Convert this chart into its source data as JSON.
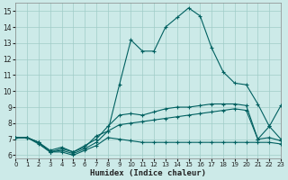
{
  "xlabel": "Humidex (Indice chaleur)",
  "xlim": [
    0,
    23
  ],
  "ylim": [
    5.8,
    15.5
  ],
  "yticks": [
    6,
    7,
    8,
    9,
    10,
    11,
    12,
    13,
    14,
    15
  ],
  "xticks": [
    0,
    1,
    2,
    3,
    4,
    5,
    6,
    7,
    8,
    9,
    10,
    11,
    12,
    13,
    14,
    15,
    16,
    17,
    18,
    19,
    20,
    21,
    22,
    23
  ],
  "bg_color": "#cceae8",
  "grid_color": "#a0ccc8",
  "line_color": "#006060",
  "series": [
    {
      "x": [
        0,
        1,
        2,
        3,
        4,
        5,
        6,
        7,
        8,
        9,
        10,
        11,
        12,
        13,
        14,
        15,
        16,
        17,
        18,
        19,
        20,
        21,
        22,
        23
      ],
      "y": [
        7.1,
        7.1,
        6.8,
        6.3,
        6.5,
        6.2,
        6.5,
        7.2,
        7.5,
        10.4,
        13.2,
        12.5,
        12.5,
        14.0,
        14.6,
        15.2,
        14.7,
        12.7,
        11.2,
        10.5,
        10.4,
        9.2,
        7.8,
        9.1
      ]
    },
    {
      "x": [
        0,
        1,
        2,
        3,
        4,
        5,
        6,
        7,
        8,
        9,
        10,
        11,
        12,
        13,
        14,
        15,
        16,
        17,
        18,
        19,
        20,
        21,
        22,
        23
      ],
      "y": [
        7.1,
        7.1,
        6.8,
        6.2,
        6.4,
        6.2,
        6.6,
        7.0,
        7.8,
        8.5,
        8.6,
        8.5,
        8.7,
        8.9,
        9.0,
        9.0,
        9.1,
        9.2,
        9.2,
        9.2,
        9.1,
        7.0,
        7.8,
        7.0
      ]
    },
    {
      "x": [
        0,
        1,
        2,
        3,
        4,
        5,
        6,
        7,
        8,
        9,
        10,
        11,
        12,
        13,
        14,
        15,
        16,
        17,
        18,
        19,
        20,
        21,
        22,
        23
      ],
      "y": [
        7.1,
        7.1,
        6.8,
        6.2,
        6.3,
        6.1,
        6.4,
        6.8,
        7.5,
        7.9,
        8.0,
        8.1,
        8.2,
        8.3,
        8.4,
        8.5,
        8.6,
        8.7,
        8.8,
        8.9,
        8.8,
        7.0,
        7.1,
        6.9
      ]
    },
    {
      "x": [
        0,
        1,
        2,
        3,
        4,
        5,
        6,
        7,
        8,
        9,
        10,
        11,
        12,
        13,
        14,
        15,
        16,
        17,
        18,
        19,
        20,
        21,
        22,
        23
      ],
      "y": [
        7.1,
        7.1,
        6.7,
        6.2,
        6.2,
        6.0,
        6.3,
        6.6,
        7.1,
        7.0,
        6.9,
        6.8,
        6.8,
        6.8,
        6.8,
        6.8,
        6.8,
        6.8,
        6.8,
        6.8,
        6.8,
        6.8,
        6.8,
        6.7
      ]
    }
  ]
}
